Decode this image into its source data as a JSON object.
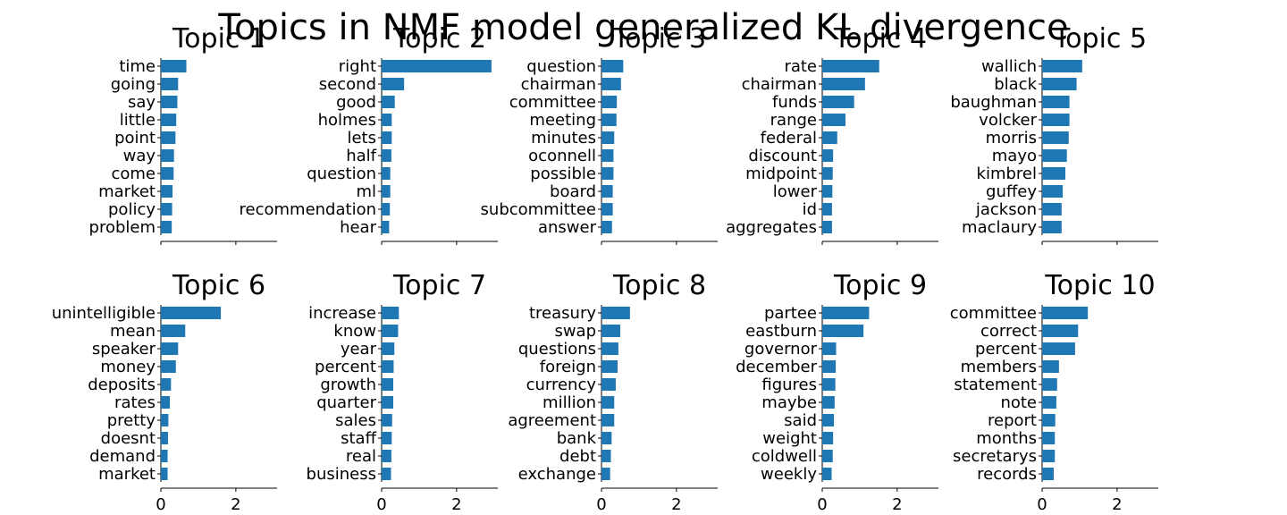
{
  "title": "Topics in NMF model generalized KL divergence",
  "chart_data": [
    {
      "type": "bar",
      "orientation": "horizontal",
      "title": "Topic 1",
      "xlim": [
        0,
        3.1
      ],
      "xticks": [
        0,
        2
      ],
      "categories": [
        "time",
        "going",
        "say",
        "little",
        "point",
        "way",
        "come",
        "market",
        "policy",
        "problem"
      ],
      "values": [
        0.68,
        0.46,
        0.44,
        0.41,
        0.39,
        0.35,
        0.34,
        0.31,
        0.3,
        0.29
      ],
      "color": "#1f77b4"
    },
    {
      "type": "bar",
      "orientation": "horizontal",
      "title": "Topic 2",
      "xlim": [
        0,
        3.1
      ],
      "xticks": [
        0,
        2
      ],
      "categories": [
        "right",
        "second",
        "good",
        "holmes",
        "lets",
        "half",
        "question",
        "ml",
        "recommendation",
        "hear"
      ],
      "values": [
        2.93,
        0.6,
        0.35,
        0.27,
        0.27,
        0.26,
        0.23,
        0.23,
        0.22,
        0.2
      ],
      "color": "#1f77b4"
    },
    {
      "type": "bar",
      "orientation": "horizontal",
      "title": "Topic 3",
      "xlim": [
        0,
        3.1
      ],
      "xticks": [
        0,
        2
      ],
      "categories": [
        "question",
        "chairman",
        "committee",
        "meeting",
        "minutes",
        "oconnell",
        "possible",
        "board",
        "subcommittee",
        "answer"
      ],
      "values": [
        0.58,
        0.52,
        0.41,
        0.4,
        0.34,
        0.32,
        0.32,
        0.3,
        0.3,
        0.28
      ],
      "color": "#1f77b4"
    },
    {
      "type": "bar",
      "orientation": "horizontal",
      "title": "Topic 4",
      "xlim": [
        0,
        3.1
      ],
      "xticks": [
        0,
        2
      ],
      "categories": [
        "rate",
        "chairman",
        "funds",
        "range",
        "federal",
        "discount",
        "midpoint",
        "lower",
        "id",
        "aggregates"
      ],
      "values": [
        1.52,
        1.14,
        0.85,
        0.62,
        0.4,
        0.29,
        0.28,
        0.27,
        0.26,
        0.26
      ],
      "color": "#1f77b4"
    },
    {
      "type": "bar",
      "orientation": "horizontal",
      "title": "Topic 5",
      "xlim": [
        0,
        3.1
      ],
      "xticks": [
        0,
        2
      ],
      "categories": [
        "wallich",
        "black",
        "baughman",
        "volcker",
        "morris",
        "mayo",
        "kimbrel",
        "guffey",
        "jackson",
        "maclaury"
      ],
      "values": [
        1.07,
        0.92,
        0.73,
        0.73,
        0.71,
        0.66,
        0.62,
        0.55,
        0.52,
        0.52
      ],
      "color": "#1f77b4"
    },
    {
      "type": "bar",
      "orientation": "horizontal",
      "title": "Topic 6",
      "xlim": [
        0,
        3.1
      ],
      "xticks": [
        0,
        2
      ],
      "categories": [
        "unintelligible",
        "mean",
        "speaker",
        "money",
        "deposits",
        "rates",
        "pretty",
        "doesnt",
        "demand",
        "market"
      ],
      "values": [
        1.6,
        0.65,
        0.46,
        0.4,
        0.27,
        0.24,
        0.2,
        0.19,
        0.18,
        0.18
      ],
      "color": "#1f77b4"
    },
    {
      "type": "bar",
      "orientation": "horizontal",
      "title": "Topic 7",
      "xlim": [
        0,
        3.1
      ],
      "xticks": [
        0,
        2
      ],
      "categories": [
        "increase",
        "know",
        "year",
        "percent",
        "growth",
        "quarter",
        "sales",
        "staff",
        "real",
        "business"
      ],
      "values": [
        0.46,
        0.44,
        0.34,
        0.32,
        0.31,
        0.31,
        0.28,
        0.27,
        0.26,
        0.25
      ],
      "color": "#1f77b4"
    },
    {
      "type": "bar",
      "orientation": "horizontal",
      "title": "Topic 8",
      "xlim": [
        0,
        3.1
      ],
      "xticks": [
        0,
        2
      ],
      "categories": [
        "treasury",
        "swap",
        "questions",
        "foreign",
        "currency",
        "million",
        "agreement",
        "bank",
        "debt",
        "exchange"
      ],
      "values": [
        0.76,
        0.5,
        0.45,
        0.43,
        0.38,
        0.34,
        0.34,
        0.27,
        0.25,
        0.23
      ],
      "color": "#1f77b4"
    },
    {
      "type": "bar",
      "orientation": "horizontal",
      "title": "Topic 9",
      "xlim": [
        0,
        3.1
      ],
      "xticks": [
        0,
        2
      ],
      "categories": [
        "partee",
        "eastburn",
        "governor",
        "december",
        "figures",
        "maybe",
        "said",
        "weight",
        "coldwell",
        "weekly"
      ],
      "values": [
        1.25,
        1.1,
        0.37,
        0.36,
        0.35,
        0.33,
        0.31,
        0.29,
        0.28,
        0.25
      ],
      "color": "#1f77b4"
    },
    {
      "type": "bar",
      "orientation": "horizontal",
      "title": "Topic 10",
      "xlim": [
        0,
        3.1
      ],
      "xticks": [
        0,
        2
      ],
      "categories": [
        "committee",
        "correct",
        "percent",
        "members",
        "statement",
        "note",
        "report",
        "months",
        "secretarys",
        "records"
      ],
      "values": [
        1.22,
        0.96,
        0.88,
        0.45,
        0.4,
        0.38,
        0.35,
        0.34,
        0.34,
        0.31
      ],
      "color": "#1f77b4"
    }
  ]
}
